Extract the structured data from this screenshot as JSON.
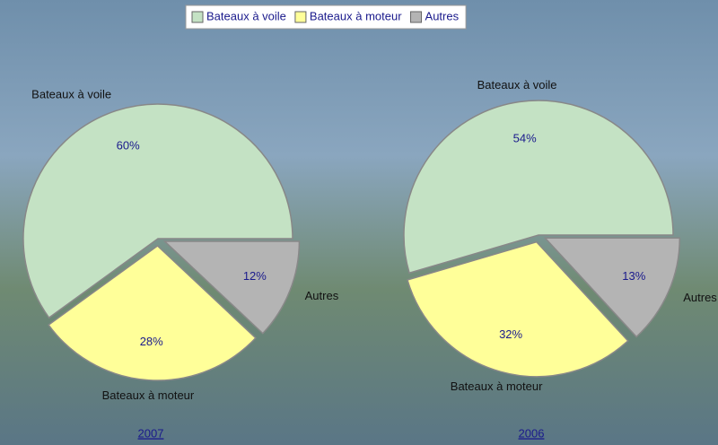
{
  "chart_data": [
    {
      "type": "pie",
      "title": "2007",
      "categories": [
        "Bateaux à voile",
        "Bateaux à moteur",
        "Autres"
      ],
      "values": [
        60,
        28,
        12
      ],
      "value_labels": [
        "60%",
        "28%",
        "12%"
      ],
      "colors": [
        "#c4e2c4",
        "#ffff99",
        "#b4b4b4"
      ],
      "legend": "top"
    },
    {
      "type": "pie",
      "title": "2006",
      "categories": [
        "Bateaux à voile",
        "Bateaux à moteur",
        "Autres"
      ],
      "values": [
        54,
        32,
        13
      ],
      "value_labels": [
        "54%",
        "32%",
        "13%"
      ],
      "colors": [
        "#c4e2c4",
        "#ffff99",
        "#b4b4b4"
      ]
    }
  ]
}
